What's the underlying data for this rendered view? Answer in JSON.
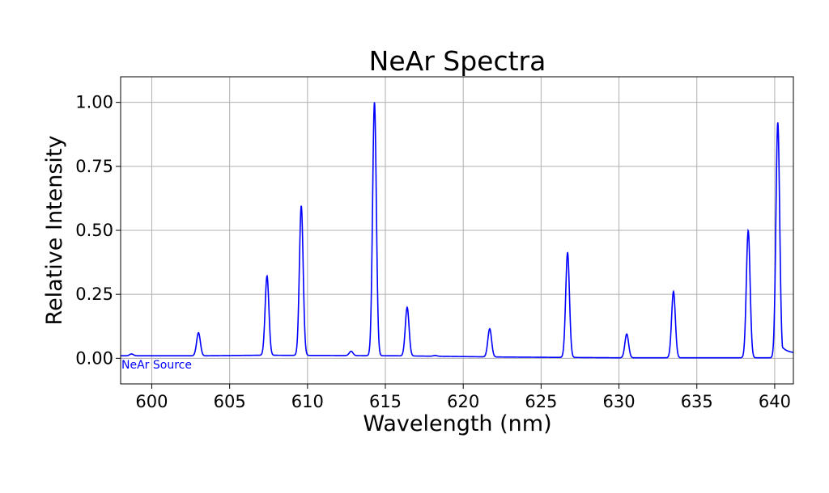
{
  "chart_data": {
    "type": "line",
    "title": "NeAr Spectra",
    "xlabel": "Wavelength (nm)",
    "ylabel": "Relative Intensity",
    "xlim": [
      598,
      641.2
    ],
    "ylim": [
      -0.1,
      1.1
    ],
    "xticks": [
      600,
      605,
      610,
      615,
      620,
      625,
      630,
      635,
      640
    ],
    "xtick_labels": [
      "600",
      "605",
      "610",
      "615",
      "620",
      "625",
      "630",
      "635",
      "640"
    ],
    "yticks": [
      0.0,
      0.25,
      0.5,
      0.75,
      1.0
    ],
    "ytick_labels": [
      "0.00",
      "0.25",
      "0.50",
      "0.75",
      "1.00"
    ],
    "grid": true,
    "annotation": "NeAr Source",
    "line_color": "#0000ff",
    "series": [
      {
        "baseline": [
          [
            598,
            0.01
          ],
          [
            603.5,
            0.01
          ],
          [
            607.0,
            0.012
          ],
          [
            615.5,
            0.01
          ],
          [
            622.5,
            0.005
          ],
          [
            630.0,
            0.002
          ],
          [
            641.2,
            0.002
          ]
        ],
        "peaks": [
          {
            "center": 598.7,
            "height": 0.007
          },
          {
            "center": 603.0,
            "height": 0.09
          },
          {
            "center": 607.4,
            "height": 0.31
          },
          {
            "center": 609.6,
            "height": 0.585
          },
          {
            "center": 612.8,
            "height": 0.017
          },
          {
            "center": 614.3,
            "height": 0.99
          },
          {
            "center": 616.4,
            "height": 0.19
          },
          {
            "center": 618.2,
            "height": 0.003
          },
          {
            "center": 621.7,
            "height": 0.11
          },
          {
            "center": 626.7,
            "height": 0.41
          },
          {
            "center": 630.5,
            "height": 0.093
          },
          {
            "center": 633.5,
            "height": 0.259
          },
          {
            "center": 638.3,
            "height": 0.497
          },
          {
            "center": 640.2,
            "height": 0.92
          }
        ],
        "tail_end": 0.02
      }
    ]
  }
}
